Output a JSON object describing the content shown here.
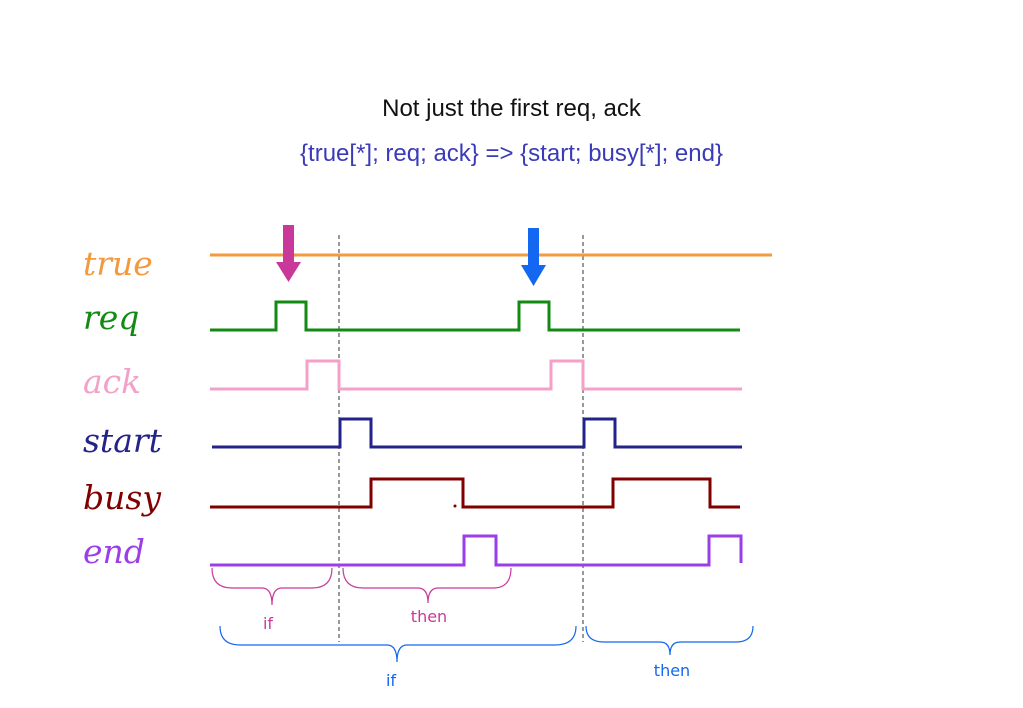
{
  "header": {
    "title": "Not just the first req, ack",
    "formula": "{true[*]; req; ack} => {start; busy[*]; end}"
  },
  "signals": [
    {
      "name": "true",
      "color": "#f39a3e"
    },
    {
      "name": "req",
      "color": "#138a13"
    },
    {
      "name": "ack",
      "color": "#f4a0c8"
    },
    {
      "name": "start",
      "color": "#23238a"
    },
    {
      "name": "busy",
      "color": "#800000"
    },
    {
      "name": "end",
      "color": "#9b3ee8"
    }
  ],
  "arrows": [
    {
      "color": "#c8399a"
    },
    {
      "color": "#1467f0"
    }
  ],
  "braces": [
    {
      "label": "if",
      "color": "#c8399a"
    },
    {
      "label": "then",
      "color": "#c8399a"
    },
    {
      "label": "if",
      "color": "#1467f0"
    },
    {
      "label": "then",
      "color": "#1467f0"
    }
  ]
}
